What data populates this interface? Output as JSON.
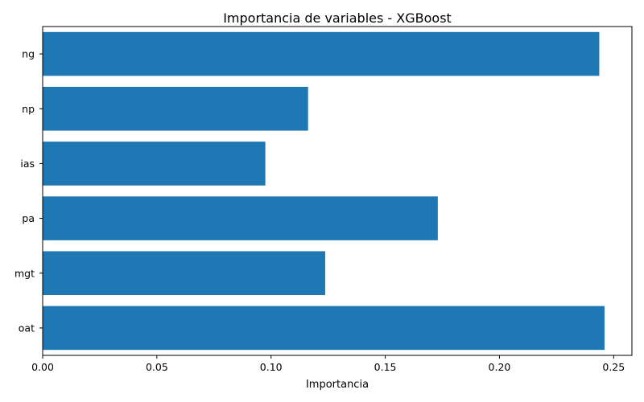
{
  "chart_data": {
    "type": "bar",
    "orientation": "horizontal",
    "title": "Importancia de variables - XGBoost",
    "xlabel": "Importancia",
    "ylabel": "",
    "categories": [
      "ng",
      "np",
      "ias",
      "pa",
      "mgt",
      "oat"
    ],
    "values": [
      0.2437,
      0.1162,
      0.0975,
      0.173,
      0.1237,
      0.246
    ],
    "xlim": [
      0,
      0.258
    ],
    "xticks": [
      0.0,
      0.05,
      0.1,
      0.15,
      0.2,
      0.25
    ],
    "xtick_labels": [
      "0.00",
      "0.05",
      "0.10",
      "0.15",
      "0.20",
      "0.25"
    ],
    "bar_color": "#1f77b4",
    "grid": false,
    "legend": "none"
  }
}
